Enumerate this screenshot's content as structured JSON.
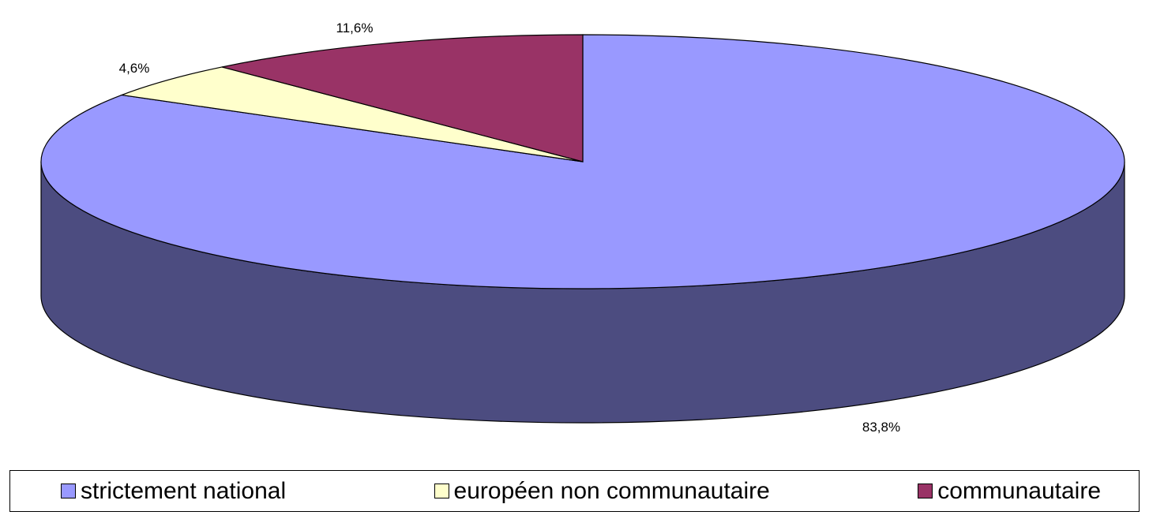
{
  "chart_data": {
    "type": "pie",
    "three_d": true,
    "legend_position": "bottom",
    "start_angle_deg": 90,
    "direction": "clockwise",
    "slices": [
      {
        "name": "strictement national",
        "value": 83.8,
        "label": "83,8%",
        "color": "#9999ff",
        "side_color": "#4c4c80"
      },
      {
        "name": "européen non communautaire",
        "value": 4.6,
        "label": "4,6%",
        "color": "#ffffcc",
        "side_color": "#808066"
      },
      {
        "name": "communautaire",
        "value": 11.6,
        "label": "11,6%",
        "color": "#993366",
        "side_color": "#4d1a33"
      }
    ]
  }
}
